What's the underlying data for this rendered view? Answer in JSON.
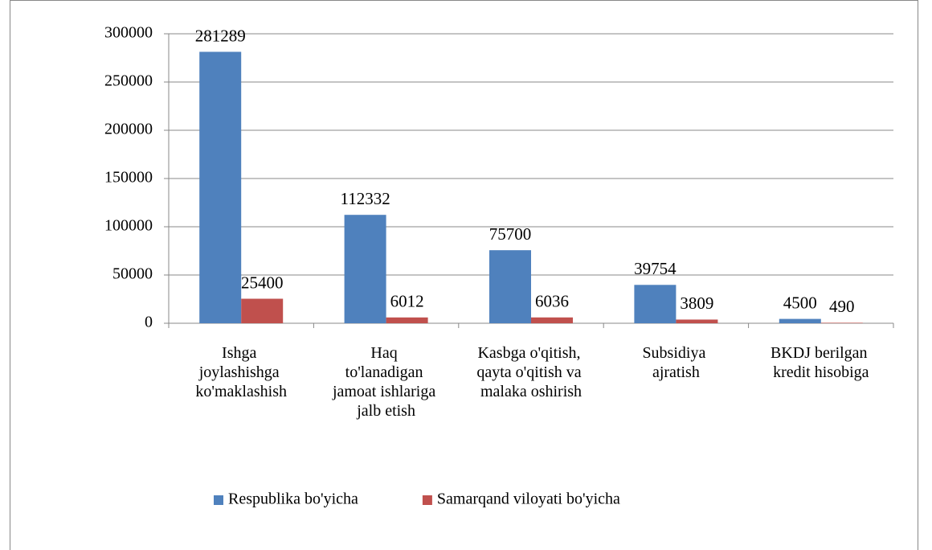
{
  "chart_data": {
    "type": "bar",
    "categories": [
      "Ishga\njoylashishga\nko'maklashish",
      "Haq\nto'lanadigan\njamoat ishlariga\njalb etish",
      "Kasbga o'qitish,\nqayta o'qitish va\nmalaka oshirish",
      "Subsidiya\najratish",
      "BKDJ berilgan\nkredit hisobiga"
    ],
    "series": [
      {
        "name": "Respublika bo'yicha",
        "color": "#4f81bd",
        "values": [
          281289,
          112332,
          75700,
          39754,
          4500
        ]
      },
      {
        "name": "Samarqand viloyati bo'yicha",
        "color": "#c0504d",
        "values": [
          25400,
          6012,
          6036,
          3809,
          490
        ]
      }
    ],
    "ylim": [
      0,
      300000
    ],
    "yticks": [
      0,
      50000,
      100000,
      150000,
      200000,
      250000,
      300000
    ],
    "grid": true,
    "legend": "bottom"
  }
}
